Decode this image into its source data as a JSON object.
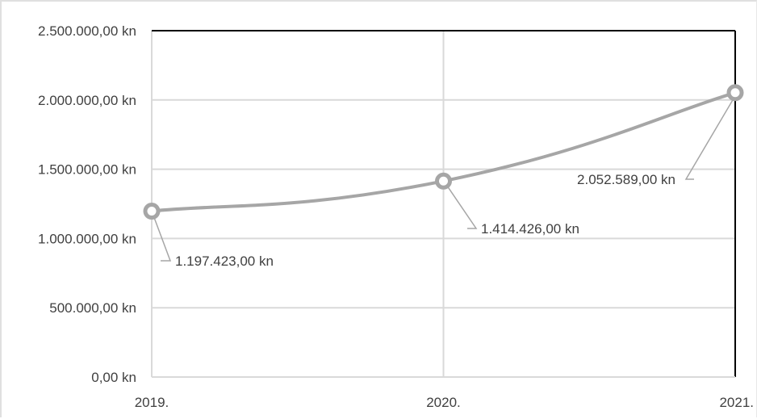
{
  "chart_data": {
    "type": "line",
    "title": "",
    "xlabel": "",
    "ylabel": "",
    "categories": [
      "2019.",
      "2020.",
      "2021."
    ],
    "series": [
      {
        "values": [
          1197423,
          1414426,
          2052589
        ]
      }
    ],
    "data_labels": [
      "1.197.423,00 kn",
      "1.414.426,00 kn",
      "2.052.589,00 kn"
    ],
    "y_ticks": [
      0,
      500000,
      1000000,
      1500000,
      2000000,
      2500000
    ],
    "y_tick_labels": [
      "0,00 kn",
      "500.000,00 kn",
      "1.000.000,00 kn",
      "1.500.000,00 kn",
      "2.000.000,00 kn",
      "2.500.000,00 kn"
    ],
    "ylim": [
      0,
      2500000
    ],
    "grid": true,
    "smooth": true,
    "colors": {
      "line": "#a6a6a6",
      "grid": "#d9d9d9",
      "text": "#404040",
      "accent_axis": "#000000"
    }
  }
}
